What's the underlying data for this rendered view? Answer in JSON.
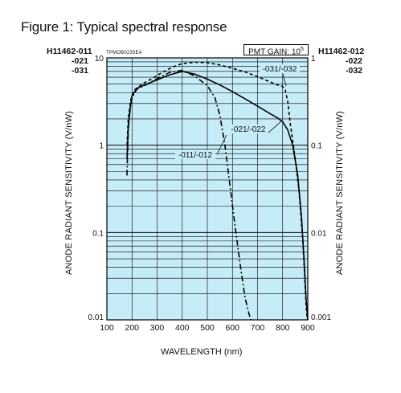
{
  "figure_title": "Figure 1: Typical spectral response",
  "models_left": [
    "H11462-011",
    "-021",
    "-031"
  ],
  "models_right": [
    "H11462-012",
    "-022",
    "-032"
  ],
  "chart_code": "TPMOB0235EA",
  "pmt_gain": {
    "label": "PMT GAIN: 10",
    "exponent": "5"
  },
  "chart_data": {
    "type": "line",
    "title": "Figure 1: Typical spectral response",
    "xlabel": "WAVELENGTH (nm)",
    "ylabel": "ANODE RADIANT SENSITIVITY (V/nW)",
    "ylabel_right": "ANODE RADIANT SENSITIVITY (V/nW)",
    "xlim": [
      100,
      900
    ],
    "ylim": [
      0.01,
      10
    ],
    "yscale": "log",
    "grid": true,
    "plot_background": "#c5ecf7",
    "x_ticks": [
      "100",
      "200",
      "300",
      "400",
      "500",
      "600",
      "700",
      "800",
      "900"
    ],
    "y_ticks_left": [
      "0.01",
      "0.1",
      "1",
      "10"
    ],
    "y_ticks_right": [
      "0.001",
      "0.01",
      "0.1",
      "1"
    ],
    "series": [
      {
        "name": "-011/-012",
        "style": "dashdot",
        "x": [
          180,
          185,
          192,
          200,
          220,
          250,
          300,
          350,
          400,
          450,
          500,
          530,
          550,
          570,
          590,
          610,
          630,
          650,
          665,
          673
        ],
        "y": [
          0.45,
          1.5,
          2.5,
          3.5,
          4.4,
          4.8,
          5.8,
          6.8,
          7.2,
          6.2,
          4.8,
          3.5,
          2.2,
          1.0,
          0.35,
          0.12,
          0.045,
          0.018,
          0.012,
          0.01
        ]
      },
      {
        "name": "-021/-022",
        "style": "solid",
        "x": [
          180,
          185,
          192,
          200,
          220,
          250,
          300,
          350,
          400,
          450,
          500,
          550,
          600,
          650,
          700,
          750,
          780,
          800,
          820,
          840,
          860,
          875,
          885,
          893,
          900
        ],
        "y": [
          0.7,
          1.6,
          2.6,
          3.7,
          4.5,
          4.9,
          5.6,
          6.4,
          7.0,
          6.5,
          5.7,
          4.9,
          4.1,
          3.4,
          2.8,
          2.3,
          2.05,
          1.85,
          1.5,
          1.0,
          0.45,
          0.15,
          0.05,
          0.018,
          0.01
        ]
      },
      {
        "name": "-031/-032",
        "style": "dashed",
        "x": [
          180,
          185,
          195,
          210,
          240,
          280,
          320,
          360,
          400,
          450,
          500,
          550,
          600,
          650,
          700,
          750,
          770,
          790,
          800,
          810,
          820,
          830,
          850,
          865,
          880,
          887,
          893,
          898
        ],
        "y": [
          1.0,
          2.0,
          3.3,
          4.3,
          5.0,
          5.8,
          6.8,
          7.8,
          8.6,
          8.9,
          8.8,
          8.3,
          7.6,
          6.9,
          6.1,
          5.3,
          5.0,
          4.8,
          4.7,
          4.3,
          3.2,
          1.8,
          0.7,
          0.3,
          0.08,
          0.035,
          0.015,
          0.01
        ]
      }
    ]
  }
}
